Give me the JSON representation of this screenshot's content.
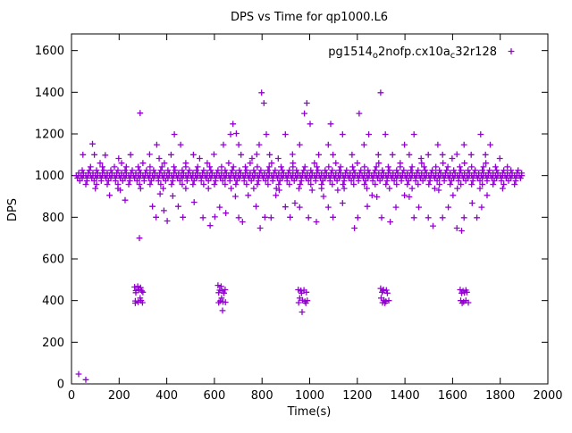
{
  "chart_data": {
    "type": "scatter",
    "title": "DPS vs Time for qp1000.L6",
    "xlabel": "Time(s)",
    "ylabel": "DPS",
    "xlim": [
      0,
      2000
    ],
    "ylim": [
      0,
      1680
    ],
    "xticks": [
      0,
      200,
      400,
      600,
      800,
      1000,
      1200,
      1400,
      1600,
      1800,
      2000
    ],
    "yticks": [
      0,
      200,
      400,
      600,
      800,
      1000,
      1200,
      1400,
      1600
    ],
    "grid": false,
    "legend": {
      "position": "top-right",
      "label_plain": "pg1514_o2nofp.cx10a_c32r128",
      "label_parts": [
        {
          "text": "pg1514",
          "sub": false
        },
        {
          "text": "o",
          "sub": true
        },
        {
          "text": "2nofp.cx10a",
          "sub": false
        },
        {
          "text": "c",
          "sub": true
        },
        {
          "text": "32r128",
          "sub": false
        }
      ]
    },
    "marker": {
      "shape": "plus",
      "color": "#9400D3",
      "size": 3.4
    },
    "series": [
      {
        "name": "pg1514_o2nofp.cx10a_c32r128",
        "band_segments": [
          {
            "x0": 20,
            "x1": 1890,
            "step": 10,
            "y": 1000
          },
          {
            "x0": 25,
            "x1": 1885,
            "step": 20,
            "y": 988
          },
          {
            "x0": 30,
            "x1": 1890,
            "step": 20,
            "y": 1012
          },
          {
            "x0": 35,
            "x1": 1885,
            "step": 30,
            "y": 975
          },
          {
            "x0": 45,
            "x1": 1875,
            "step": 30,
            "y": 1025
          },
          {
            "x0": 60,
            "x1": 1860,
            "step": 45,
            "y": 958
          },
          {
            "x0": 80,
            "x1": 1840,
            "step": 50,
            "y": 1042
          },
          {
            "x0": 120,
            "x1": 1800,
            "step": 90,
            "y": 1060
          },
          {
            "x0": 100,
            "x1": 1820,
            "step": 95,
            "y": 938
          }
        ],
        "points": [
          [
            30,
            47
          ],
          [
            60,
            20
          ],
          [
            265,
            465
          ],
          [
            278,
            468
          ],
          [
            290,
            462
          ],
          [
            270,
            448
          ],
          [
            282,
            452
          ],
          [
            295,
            446
          ],
          [
            270,
            438
          ],
          [
            300,
            440
          ],
          [
            268,
            398
          ],
          [
            280,
            393
          ],
          [
            292,
            400
          ],
          [
            268,
            388
          ],
          [
            298,
            390
          ],
          [
            288,
            412
          ],
          [
            285,
            700
          ],
          [
            615,
            473
          ],
          [
            628,
            468
          ],
          [
            622,
            450
          ],
          [
            634,
            446
          ],
          [
            645,
            452
          ],
          [
            618,
            438
          ],
          [
            640,
            436
          ],
          [
            624,
            398
          ],
          [
            636,
            394
          ],
          [
            618,
            390
          ],
          [
            646,
            392
          ],
          [
            630,
            412
          ],
          [
            634,
            352
          ],
          [
            952,
            452
          ],
          [
            964,
            446
          ],
          [
            976,
            450
          ],
          [
            986,
            440
          ],
          [
            958,
            412
          ],
          [
            970,
            402
          ],
          [
            980,
            396
          ],
          [
            990,
            400
          ],
          [
            954,
            390
          ],
          [
            984,
            388
          ],
          [
            966,
            436
          ],
          [
            962,
            448
          ],
          [
            968,
            345
          ],
          [
            1298,
            458
          ],
          [
            1310,
            452
          ],
          [
            1322,
            450
          ],
          [
            1304,
            440
          ],
          [
            1326,
            436
          ],
          [
            1300,
            412
          ],
          [
            1312,
            402
          ],
          [
            1320,
            396
          ],
          [
            1332,
            400
          ],
          [
            1306,
            390
          ],
          [
            1316,
            388
          ],
          [
            1308,
            448
          ],
          [
            1632,
            452
          ],
          [
            1644,
            446
          ],
          [
            1656,
            450
          ],
          [
            1638,
            436
          ],
          [
            1660,
            440
          ],
          [
            1634,
            400
          ],
          [
            1646,
            394
          ],
          [
            1656,
            400
          ],
          [
            1666,
            390
          ],
          [
            1640,
            388
          ],
          [
            1650,
            438
          ],
          [
            160,
            905
          ],
          [
            205,
            930
          ],
          [
            225,
            882
          ],
          [
            340,
            852
          ],
          [
            355,
            800
          ],
          [
            372,
            912
          ],
          [
            388,
            832
          ],
          [
            402,
            782
          ],
          [
            425,
            902
          ],
          [
            448,
            852
          ],
          [
            468,
            800
          ],
          [
            515,
            872
          ],
          [
            552,
            798
          ],
          [
            582,
            760
          ],
          [
            602,
            802
          ],
          [
            622,
            848
          ],
          [
            648,
            820
          ],
          [
            688,
            900
          ],
          [
            702,
            798
          ],
          [
            718,
            778
          ],
          [
            742,
            905
          ],
          [
            775,
            852
          ],
          [
            792,
            748
          ],
          [
            812,
            800
          ],
          [
            838,
            798
          ],
          [
            858,
            905
          ],
          [
            872,
            930
          ],
          [
            898,
            850
          ],
          [
            918,
            800
          ],
          [
            938,
            868
          ],
          [
            958,
            848
          ],
          [
            995,
            798
          ],
          [
            1010,
            930
          ],
          [
            1028,
            778
          ],
          [
            1058,
            900
          ],
          [
            1078,
            848
          ],
          [
            1098,
            800
          ],
          [
            1118,
            930
          ],
          [
            1138,
            868
          ],
          [
            1188,
            748
          ],
          [
            1202,
            798
          ],
          [
            1242,
            852
          ],
          [
            1262,
            905
          ],
          [
            1282,
            898
          ],
          [
            1302,
            798
          ],
          [
            1338,
            778
          ],
          [
            1362,
            848
          ],
          [
            1398,
            905
          ],
          [
            1418,
            898
          ],
          [
            1438,
            798
          ],
          [
            1458,
            848
          ],
          [
            1498,
            798
          ],
          [
            1518,
            758
          ],
          [
            1542,
            930
          ],
          [
            1558,
            798
          ],
          [
            1582,
            848
          ],
          [
            1602,
            905
          ],
          [
            1618,
            748
          ],
          [
            1638,
            735
          ],
          [
            1648,
            798
          ],
          [
            1682,
            868
          ],
          [
            1702,
            798
          ],
          [
            1722,
            848
          ],
          [
            1745,
            905
          ],
          [
            48,
            1100
          ],
          [
            88,
            1152
          ],
          [
            96,
            1100
          ],
          [
            142,
            1098
          ],
          [
            198,
            1082
          ],
          [
            248,
            1100
          ],
          [
            288,
            1300
          ],
          [
            328,
            1102
          ],
          [
            358,
            1148
          ],
          [
            368,
            1082
          ],
          [
            418,
            1100
          ],
          [
            432,
            1198
          ],
          [
            458,
            1148
          ],
          [
            512,
            1100
          ],
          [
            538,
            1082
          ],
          [
            598,
            1102
          ],
          [
            638,
            1148
          ],
          [
            668,
            1198
          ],
          [
            678,
            1248
          ],
          [
            692,
            1202
          ],
          [
            702,
            1148
          ],
          [
            712,
            1100
          ],
          [
            758,
            1082
          ],
          [
            778,
            1102
          ],
          [
            788,
            1148
          ],
          [
            798,
            1398
          ],
          [
            808,
            1348
          ],
          [
            818,
            1198
          ],
          [
            832,
            1100
          ],
          [
            868,
            1082
          ],
          [
            898,
            1198
          ],
          [
            928,
            1102
          ],
          [
            958,
            1148
          ],
          [
            978,
            1298
          ],
          [
            988,
            1348
          ],
          [
            1002,
            1248
          ],
          [
            1038,
            1100
          ],
          [
            1078,
            1148
          ],
          [
            1088,
            1248
          ],
          [
            1098,
            1100
          ],
          [
            1138,
            1198
          ],
          [
            1178,
            1100
          ],
          [
            1208,
            1298
          ],
          [
            1228,
            1148
          ],
          [
            1248,
            1198
          ],
          [
            1288,
            1100
          ],
          [
            1298,
            1398
          ],
          [
            1318,
            1198
          ],
          [
            1348,
            1100
          ],
          [
            1398,
            1148
          ],
          [
            1418,
            1100
          ],
          [
            1438,
            1198
          ],
          [
            1468,
            1082
          ],
          [
            1498,
            1100
          ],
          [
            1538,
            1148
          ],
          [
            1558,
            1100
          ],
          [
            1598,
            1082
          ],
          [
            1618,
            1102
          ],
          [
            1648,
            1148
          ],
          [
            1678,
            1100
          ],
          [
            1718,
            1198
          ],
          [
            1738,
            1100
          ],
          [
            1758,
            1148
          ],
          [
            1798,
            1082
          ]
        ]
      }
    ]
  }
}
